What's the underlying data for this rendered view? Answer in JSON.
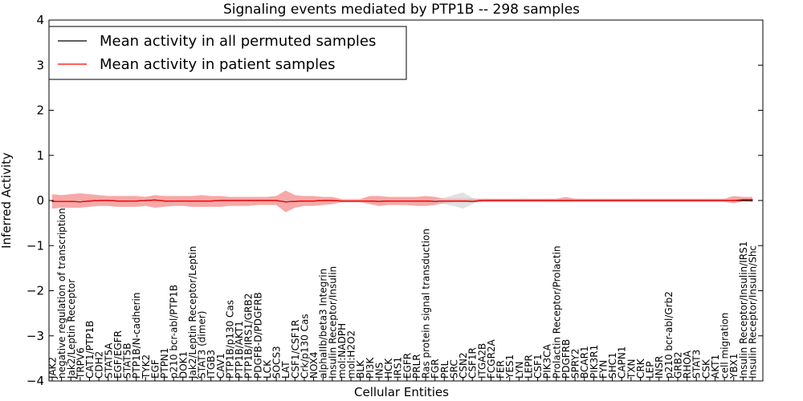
{
  "chart_data": {
    "type": "line",
    "title": "Signaling events mediated by PTP1B -- 298 samples",
    "xlabel": "Cellular Entities",
    "ylabel": "Inferred Activity",
    "ylim": [
      -4,
      4
    ],
    "yticks": [
      -4,
      -3,
      -2,
      -1,
      0,
      1,
      2,
      3,
      4
    ],
    "ytick_labels": [
      "−4",
      "−3",
      "−2",
      "−1",
      "0",
      "1",
      "2",
      "3",
      "4"
    ],
    "legend_placement": "top-left",
    "categories": [
      "JAK2",
      "negative regulation of transcription",
      "Jak2/Leptin Receptor",
      "TRPV6",
      "CAT1/PTP1B",
      "CDH2",
      "STAT5A",
      "EGF/EGFR",
      "STAT5B",
      "PTP1B/N-cadherin",
      "TYK2",
      "EGF",
      "PTPN1",
      "p210 bcr-abl/PTP1B",
      "DOK1",
      "Jak2/Leptin Receptor/Leptin",
      "STAT3 (dimer)",
      "ITGB3",
      "CAV1",
      "PTP1B/p130 Cas",
      "PTP1B/AKT1",
      "PTP1B/IRS1/GRB2",
      "PDGFB-D/PDGFRB",
      "LCK",
      "SOCS3",
      "LAT",
      "CSF1/CSF1R",
      "Crk/p130 Cas",
      "NOX4",
      "alphaIIb/beta3 Integrin",
      "Insulin Receptor/Insulin",
      "mol:NADPH",
      "mol:H2O2",
      "BLK",
      "PI3K",
      "INS",
      "HCK",
      "IRS1",
      "EGFR",
      "PRLR",
      "Ras protein signal transduction",
      "FGR",
      "PRL",
      "SRC",
      "CSN2",
      "CSF1R",
      "ITGA2B",
      "FCGR2A",
      "FER",
      "YES1",
      "LYN",
      "LEPR",
      "CSF1",
      "PIK3CA",
      "Prolactin Receptor/Prolactin",
      "PDGFRB",
      "SPRY2",
      "BCAR1",
      "PIK3R1",
      "FYN",
      "SHC1",
      "CAPN1",
      "TXN",
      "CRK",
      "LEP",
      "INSR",
      "p210 bcr-abl/Grb2",
      "GRB2",
      "RHOA",
      "STAT3",
      "CSK",
      "AKT1",
      "cell migration",
      "YBX1",
      "Insulin Receptor/Insulin/IRS1",
      "Insulin Receptor/Insulin/Shc"
    ],
    "series": [
      {
        "name": "Mean activity in all permuted samples",
        "color": "#000000",
        "values": [
          -0.02,
          -0.02,
          -0.02,
          -0.03,
          -0.01,
          0.0,
          0.0,
          -0.01,
          -0.01,
          -0.01,
          0.0,
          0.01,
          -0.01,
          -0.01,
          -0.01,
          -0.01,
          -0.01,
          -0.01,
          0.0,
          0.0,
          0.0,
          0.0,
          0.0,
          0.0,
          0.0,
          -0.03,
          -0.02,
          -0.01,
          -0.01,
          0.0,
          0.0,
          -0.01,
          -0.01,
          -0.01,
          -0.01,
          -0.02,
          -0.01,
          -0.01,
          -0.01,
          -0.01,
          -0.01,
          -0.02,
          -0.01,
          -0.01,
          -0.01,
          -0.02,
          0.0,
          0.0,
          0.0,
          0.0,
          0.0,
          0.0,
          0.0,
          0.0,
          0.0,
          0.0,
          0.0,
          0.0,
          0.0,
          0.0,
          0.0,
          0.0,
          0.0,
          0.0,
          0.0,
          0.0,
          0.0,
          0.0,
          0.0,
          0.0,
          0.0,
          0.0,
          0.0,
          0.0,
          0.0,
          0.0
        ],
        "band_lower": [
          -0.02,
          -0.02,
          -0.02,
          -0.03,
          -0.01,
          0.0,
          0.0,
          -0.01,
          -0.01,
          -0.01,
          0.0,
          0.01,
          -0.01,
          -0.01,
          -0.01,
          -0.01,
          -0.01,
          -0.01,
          0.0,
          0.0,
          0.0,
          0.0,
          0.0,
          0.0,
          0.0,
          -0.03,
          -0.02,
          -0.01,
          -0.01,
          0.0,
          0.0,
          -0.01,
          -0.01,
          -0.01,
          -0.01,
          -0.02,
          -0.01,
          -0.01,
          -0.01,
          -0.01,
          -0.01,
          -0.05,
          -0.08,
          -0.12,
          -0.18,
          -0.08,
          0.0,
          0.0,
          0.0,
          0.0,
          0.0,
          0.0,
          0.0,
          0.0,
          0.0,
          0.0,
          0.0,
          0.0,
          0.0,
          0.0,
          0.0,
          0.0,
          0.0,
          0.0,
          0.0,
          0.0,
          0.0,
          0.0,
          0.0,
          0.0,
          0.0,
          0.0,
          0.0,
          0.0,
          0.0,
          0.0
        ],
        "band_upper": [
          -0.02,
          -0.02,
          -0.02,
          -0.03,
          -0.01,
          0.0,
          0.0,
          -0.01,
          -0.01,
          -0.01,
          0.0,
          0.01,
          -0.01,
          -0.01,
          -0.01,
          -0.01,
          -0.01,
          -0.01,
          0.0,
          0.0,
          0.0,
          0.0,
          0.0,
          0.0,
          0.0,
          -0.03,
          -0.02,
          -0.01,
          -0.01,
          0.0,
          0.0,
          -0.01,
          -0.01,
          -0.01,
          -0.01,
          -0.02,
          -0.01,
          -0.01,
          -0.01,
          -0.01,
          -0.01,
          0.02,
          0.06,
          0.12,
          0.18,
          0.06,
          0.0,
          0.0,
          0.0,
          0.0,
          0.0,
          0.0,
          0.0,
          0.0,
          0.0,
          0.0,
          0.0,
          0.0,
          0.0,
          0.0,
          0.0,
          0.0,
          0.0,
          0.0,
          0.0,
          0.0,
          0.0,
          0.0,
          0.0,
          0.0,
          0.0,
          0.0,
          0.0,
          0.0,
          0.0,
          0.0
        ]
      },
      {
        "name": "Mean activity in patient samples",
        "color": "#ff0000",
        "values": [
          -0.02,
          -0.02,
          -0.02,
          -0.03,
          -0.01,
          0.0,
          0.0,
          -0.01,
          -0.01,
          -0.01,
          0.0,
          0.01,
          -0.01,
          -0.01,
          -0.01,
          -0.01,
          -0.01,
          -0.01,
          0.0,
          0.0,
          0.0,
          0.0,
          0.0,
          0.0,
          0.0,
          -0.03,
          -0.02,
          -0.01,
          -0.01,
          0.0,
          0.0,
          -0.01,
          -0.01,
          -0.01,
          -0.01,
          -0.02,
          -0.01,
          -0.01,
          -0.01,
          -0.01,
          -0.01,
          -0.02,
          -0.01,
          -0.01,
          -0.01,
          -0.02,
          0.0,
          0.0,
          0.0,
          0.0,
          0.0,
          0.0,
          0.0,
          0.0,
          0.0,
          0.0,
          0.0,
          0.0,
          0.0,
          0.0,
          0.0,
          0.0,
          0.0,
          0.0,
          0.0,
          0.0,
          0.0,
          0.0,
          0.0,
          0.0,
          0.0,
          0.0,
          0.0,
          0.0,
          0.02,
          0.02
        ],
        "band_lower": [
          -0.18,
          -0.16,
          -0.16,
          -0.16,
          -0.14,
          -0.12,
          -0.12,
          -0.14,
          -0.14,
          -0.14,
          -0.12,
          -0.16,
          -0.14,
          -0.12,
          -0.12,
          -0.14,
          -0.14,
          -0.14,
          -0.14,
          -0.12,
          -0.12,
          -0.12,
          -0.1,
          -0.1,
          -0.1,
          -0.26,
          -0.16,
          -0.12,
          -0.12,
          -0.1,
          -0.08,
          -0.04,
          -0.04,
          -0.04,
          -0.08,
          -0.12,
          -0.1,
          -0.1,
          -0.1,
          -0.12,
          -0.12,
          -0.1,
          -0.06,
          -0.04,
          -0.04,
          -0.04,
          -0.03,
          -0.03,
          -0.03,
          -0.03,
          -0.03,
          -0.03,
          -0.03,
          -0.03,
          -0.03,
          -0.03,
          -0.03,
          -0.03,
          -0.03,
          -0.03,
          -0.03,
          -0.03,
          -0.03,
          -0.03,
          -0.03,
          -0.03,
          -0.03,
          -0.03,
          -0.03,
          -0.03,
          -0.03,
          -0.03,
          -0.03,
          -0.06,
          -0.02,
          -0.03
        ],
        "band_upper": [
          0.14,
          0.12,
          0.14,
          0.16,
          0.14,
          0.12,
          0.1,
          0.1,
          0.1,
          0.1,
          0.08,
          0.12,
          0.1,
          0.1,
          0.1,
          0.1,
          0.12,
          0.1,
          0.1,
          0.08,
          0.08,
          0.08,
          0.08,
          0.08,
          0.1,
          0.22,
          0.12,
          0.1,
          0.1,
          0.08,
          0.08,
          0.03,
          0.03,
          0.03,
          0.1,
          0.1,
          0.08,
          0.08,
          0.08,
          0.08,
          0.1,
          0.08,
          0.04,
          0.04,
          0.04,
          0.04,
          0.04,
          0.04,
          0.04,
          0.04,
          0.04,
          0.04,
          0.04,
          0.04,
          0.04,
          0.08,
          0.04,
          0.04,
          0.04,
          0.04,
          0.04,
          0.04,
          0.04,
          0.04,
          0.04,
          0.04,
          0.04,
          0.04,
          0.04,
          0.04,
          0.04,
          0.04,
          0.04,
          0.1,
          0.08,
          0.08
        ]
      }
    ]
  }
}
